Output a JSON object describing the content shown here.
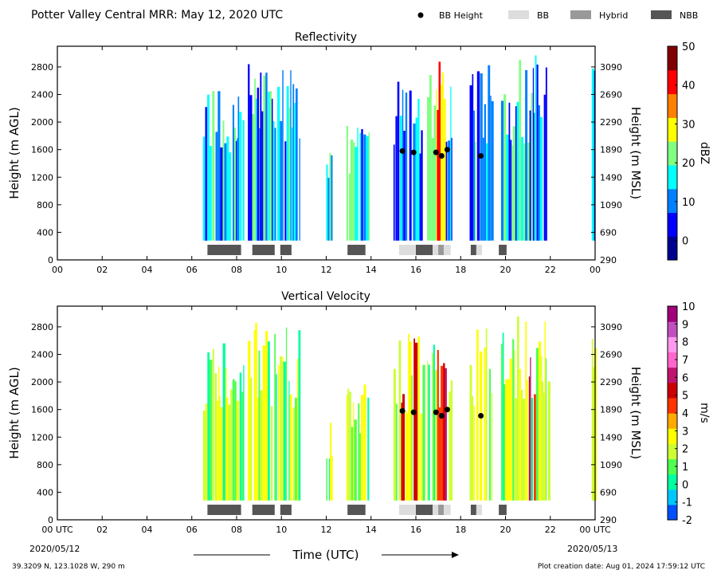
{
  "header": {
    "title": "Potter Valley Central MRR:  May 12, 2020 UTC",
    "legend": [
      {
        "label": "BB Height",
        "kind": "dot",
        "color": "#000000"
      },
      {
        "label": "BB",
        "kind": "swatch",
        "color": "#dddddd"
      },
      {
        "label": "Hybrid",
        "kind": "swatch",
        "color": "#999999"
      },
      {
        "label": "NBB",
        "kind": "swatch",
        "color": "#555555"
      }
    ]
  },
  "footer": {
    "location": "39.3209 N, 123.1028 W, 290 m",
    "creation": "Plot creation date: Aug 01, 2024 17:59:12 UTC",
    "xlabel": "Time (UTC)",
    "start_tz": "00 UTC",
    "end_tz": "00 UTC",
    "start_date": "2020/05/12",
    "end_date": "2020/05/13"
  },
  "chart_data": [
    {
      "type": "heatmap",
      "title": "Reflectivity",
      "ylabel": "Height (m AGL)",
      "ylabel_right": "Height (m MSL)",
      "colorbar_label": "dBZ",
      "colorbar_ticks": [
        "50",
        "40",
        "30",
        "20",
        "10",
        "0"
      ],
      "colorbar_range": [
        -5,
        50
      ],
      "colorbar_colors": [
        "#00008f",
        "#0000ff",
        "#0080ff",
        "#00ffff",
        "#80ff80",
        "#ffff00",
        "#ff8000",
        "#ff0000",
        "#800000"
      ],
      "xlim": [
        0,
        24
      ],
      "ylim": [
        0,
        3100
      ],
      "x_ticks": [
        "00",
        "02",
        "04",
        "06",
        "08",
        "10",
        "12",
        "14",
        "16",
        "18",
        "20",
        "22",
        "00"
      ],
      "y_ticks_left": [
        "0",
        "400",
        "800",
        "1200",
        "1600",
        "2000",
        "2400",
        "2800"
      ],
      "y_ticks_right": [
        "290",
        "690",
        "1090",
        "1490",
        "1890",
        "2290",
        "2690",
        "3090"
      ],
      "echo_segments": [
        {
          "start": 6.5,
          "end": 8.3,
          "top": 2600
        },
        {
          "start": 8.5,
          "end": 10.8,
          "top": 2900
        },
        {
          "start": 12.0,
          "end": 12.25,
          "top": 1600
        },
        {
          "start": 12.9,
          "end": 13.9,
          "top": 2000
        },
        {
          "start": 15.0,
          "end": 16.3,
          "top": 2700
        },
        {
          "start": 16.5,
          "end": 17.6,
          "top": 2900
        },
        {
          "start": 18.4,
          "end": 19.4,
          "top": 3000
        },
        {
          "start": 19.8,
          "end": 21.9,
          "top": 3000
        },
        {
          "start": 23.85,
          "end": 24.0,
          "top": 3000
        }
      ],
      "bb_points": [
        {
          "time": 15.4,
          "height": 1580
        },
        {
          "time": 15.9,
          "height": 1560
        },
        {
          "time": 16.9,
          "height": 1560
        },
        {
          "time": 17.15,
          "height": 1510
        },
        {
          "time": 17.4,
          "height": 1600
        },
        {
          "time": 18.9,
          "height": 1510
        }
      ]
    },
    {
      "type": "heatmap",
      "title": "Vertical Velocity",
      "ylabel": "Height (m AGL)",
      "ylabel_right": "Height (m MSL)",
      "colorbar_label": "m/s",
      "colorbar_ticks": [
        "10",
        "9",
        "8",
        "7",
        "6",
        "5",
        "4",
        "3",
        "2",
        "1",
        "0",
        "-1",
        "-2"
      ],
      "colorbar_range": [
        -2,
        10
      ],
      "colorbar_colors": [
        "#0050ff",
        "#00c8ff",
        "#00ffa0",
        "#50ff50",
        "#ccff33",
        "#ffff00",
        "#ffaa00",
        "#ff3300",
        "#cc0000",
        "#c0146e",
        "#ff66cc",
        "#ff99ee",
        "#c050c0",
        "#a0007a"
      ],
      "xlim": [
        0,
        24
      ],
      "ylim": [
        0,
        3100
      ],
      "x_ticks": [
        "00 UTC",
        "02",
        "04",
        "06",
        "08",
        "10",
        "12",
        "14",
        "16",
        "18",
        "20",
        "22",
        "00 UTC"
      ],
      "y_ticks_left": [
        "0",
        "400",
        "800",
        "1200",
        "1600",
        "2000",
        "2400",
        "2800"
      ],
      "y_ticks_right": [
        "290",
        "690",
        "1090",
        "1490",
        "1890",
        "2290",
        "2690",
        "3090"
      ],
      "echo_segments": [
        {
          "start": 6.5,
          "end": 8.3,
          "top": 2600
        },
        {
          "start": 8.5,
          "end": 10.8,
          "top": 2900
        },
        {
          "start": 12.0,
          "end": 12.25,
          "top": 1600
        },
        {
          "start": 12.9,
          "end": 13.9,
          "top": 2000
        },
        {
          "start": 15.0,
          "end": 16.3,
          "top": 2700
        },
        {
          "start": 16.5,
          "end": 17.6,
          "top": 2900
        },
        {
          "start": 18.4,
          "end": 19.4,
          "top": 3000
        },
        {
          "start": 19.8,
          "end": 21.9,
          "top": 3000
        },
        {
          "start": 23.85,
          "end": 24.0,
          "top": 3000
        }
      ],
      "bb_points": [
        {
          "time": 15.4,
          "height": 1580
        },
        {
          "time": 15.9,
          "height": 1560
        },
        {
          "time": 16.9,
          "height": 1560
        },
        {
          "time": 17.15,
          "height": 1510
        },
        {
          "time": 17.4,
          "height": 1600
        },
        {
          "time": 18.9,
          "height": 1510
        }
      ]
    }
  ],
  "bb_classification": [
    {
      "start": 6.7,
      "end": 8.2,
      "type": "NBB"
    },
    {
      "start": 8.7,
      "end": 9.7,
      "type": "NBB"
    },
    {
      "start": 9.95,
      "end": 10.45,
      "type": "NBB"
    },
    {
      "start": 12.95,
      "end": 13.75,
      "type": "NBB"
    },
    {
      "start": 15.25,
      "end": 16.0,
      "type": "BB"
    },
    {
      "start": 16.0,
      "end": 16.75,
      "type": "NBB"
    },
    {
      "start": 16.75,
      "end": 17.0,
      "type": "BB"
    },
    {
      "start": 17.0,
      "end": 17.25,
      "type": "Hybrid"
    },
    {
      "start": 17.25,
      "end": 17.55,
      "type": "BB"
    },
    {
      "start": 18.45,
      "end": 18.7,
      "type": "NBB"
    },
    {
      "start": 18.7,
      "end": 18.95,
      "type": "BB"
    },
    {
      "start": 19.7,
      "end": 20.05,
      "type": "NBB"
    }
  ]
}
